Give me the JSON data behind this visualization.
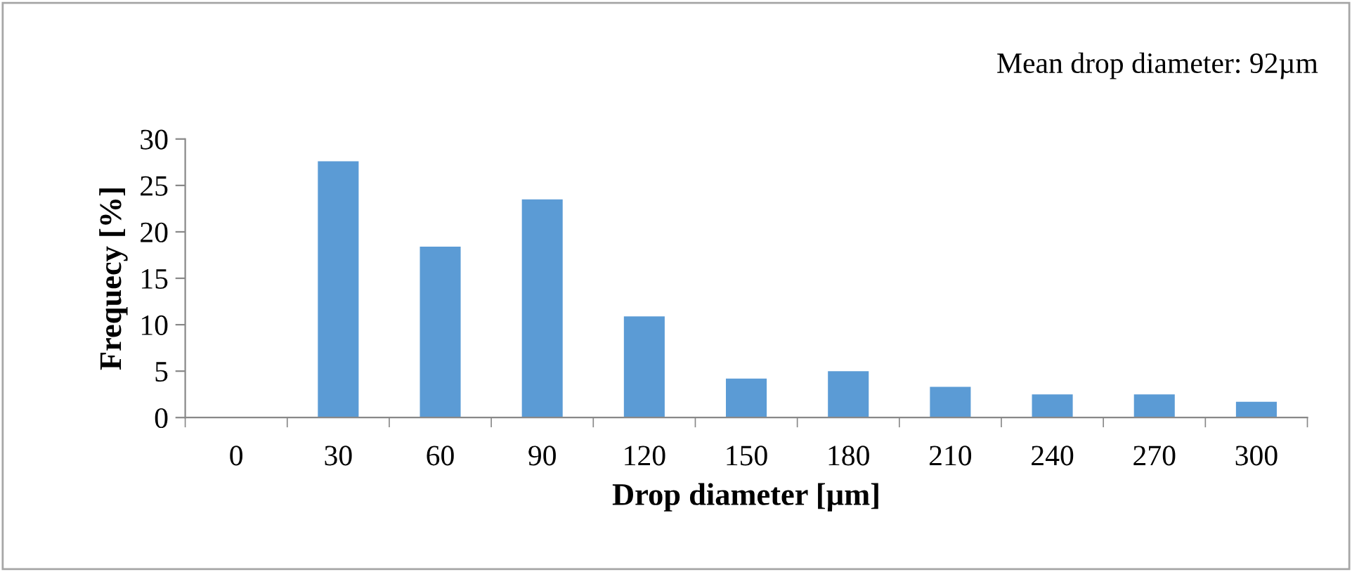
{
  "chart_data": {
    "type": "bar",
    "xlabel": "Drop diameter [µm]",
    "ylabel": "Frequecy [%]",
    "categories": [
      "0",
      "30",
      "60",
      "90",
      "120",
      "150",
      "180",
      "210",
      "240",
      "270",
      "300"
    ],
    "values": [
      0,
      27.6,
      18.4,
      23.5,
      10.9,
      4.2,
      5.0,
      3.3,
      2.5,
      2.5,
      1.7
    ],
    "color": "#5b9bd5",
    "ylim": [
      0,
      30
    ],
    "yticks": [
      0,
      5,
      10,
      15,
      20,
      25,
      30
    ],
    "grid": false,
    "legend": false,
    "annotations": [
      "Mean drop diameter: 92µm"
    ]
  }
}
